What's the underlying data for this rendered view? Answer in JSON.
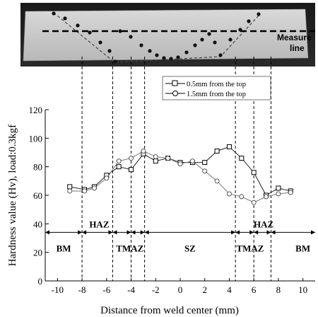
{
  "figure": {
    "macro_label": "Measure line",
    "macro_label_lines": [
      "Measure",
      "line"
    ]
  },
  "chart_data": {
    "type": "line",
    "xlabel": "Distance from weld center (mm)",
    "ylabel": "Hardness value (Hv), load:0.3kgf",
    "xlim": [
      -11,
      11
    ],
    "ylim": [
      0,
      120
    ],
    "xticks": [
      -10,
      -8,
      -6,
      -4,
      -2,
      0,
      2,
      4,
      6,
      8,
      10
    ],
    "yticks": [
      0,
      20,
      40,
      60,
      80,
      100,
      120
    ],
    "grid": false,
    "legend_position": "top-right",
    "series": [
      {
        "name": "0.5mm from the top",
        "marker": "square",
        "x": [
          -9.0,
          -7.8,
          -7.0,
          -6.0,
          -5.0,
          -4.0,
          -3.0,
          -2.0,
          -1.0,
          0.0,
          1.0,
          2.0,
          3.0,
          4.0,
          5.0,
          6.0,
          7.0,
          8.0,
          9.0
        ],
        "y": [
          66,
          64,
          66,
          74,
          80,
          78,
          89,
          84,
          86,
          83,
          83,
          83,
          91,
          94,
          86,
          76,
          60,
          65,
          63
        ]
      },
      {
        "name": "1.5mm from the top",
        "marker": "circle",
        "x": [
          -9.0,
          -7.8,
          -7.0,
          -6.0,
          -5.0,
          -4.0,
          -3.0,
          -2.0,
          -1.0,
          0.0,
          1.0,
          2.0,
          3.0,
          4.0,
          5.0,
          6.0,
          7.0,
          8.0,
          9.0
        ],
        "y": [
          63,
          63,
          65,
          72,
          84,
          86,
          91,
          87,
          86,
          82,
          84,
          77,
          70,
          61,
          59,
          55,
          59,
          61,
          62
        ]
      }
    ],
    "zones": [
      {
        "label": "BM",
        "from": -11,
        "to": -8,
        "label_x": -9.5,
        "label_y": 23
      },
      {
        "label": "HAZ",
        "from": -8,
        "to": -5.5,
        "label_x": -6.6,
        "label_y": 40
      },
      {
        "label": "TMAZ",
        "from": -5.5,
        "to": -2.9,
        "label_x": -4.1,
        "label_y": 23
      },
      {
        "label": "SZ",
        "from": -2.9,
        "to": 4.5,
        "label_x": 0.8,
        "label_y": 23
      },
      {
        "label": "TMAZ",
        "from": 4.5,
        "to": 7.4,
        "label_x": 5.7,
        "label_y": 23
      },
      {
        "label": "HAZ",
        "from": 6.0,
        "to": 7.6,
        "label_x": 6.8,
        "label_y": 40
      },
      {
        "label": "BM",
        "from": 7.6,
        "to": 11,
        "label_x": 10.0,
        "label_y": 23
      }
    ],
    "zone_boundaries": [
      -8,
      -5.5,
      -4.0,
      -2.9,
      4.5,
      6.0,
      7.4
    ],
    "zone_arrow_y": 34
  }
}
